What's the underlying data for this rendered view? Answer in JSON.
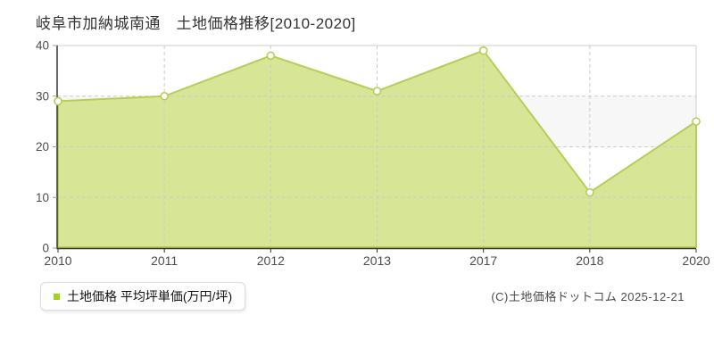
{
  "page": {
    "title": "岐阜市加納城南通　土地価格推移[2010-2020]",
    "copyright": "(C)土地価格ドットコム 2025-12-21"
  },
  "legend": {
    "label": "土地価格 平均坪単価(万円/坪)",
    "swatch_color": "#a6d01e"
  },
  "chart_data": {
    "type": "area",
    "categories": [
      "2010",
      "2011",
      "2012",
      "2013",
      "2017",
      "2018",
      "2020"
    ],
    "series": [
      {
        "name": "土地価格",
        "values": [
          29,
          30,
          38,
          31,
          39,
          11,
          25
        ]
      }
    ],
    "title": "岐阜市加納城南通　土地価格推移[2010-2020]",
    "xlabel": "",
    "ylabel": "平均坪単価(万円/坪)",
    "ylim": [
      0,
      40
    ],
    "yticks": [
      0,
      10,
      20,
      30,
      40
    ],
    "grid": true,
    "legend_position": "bottom-left",
    "colors": {
      "area_fill": "#d7e596",
      "line": "#b7cd58",
      "marker_fill": "#ffffff",
      "marker_stroke": "#b7cd58",
      "band_fill": "#f7f7f7",
      "grid": "#cccccc",
      "axis": "#333333",
      "tick_label": "#4d4d4d"
    }
  }
}
